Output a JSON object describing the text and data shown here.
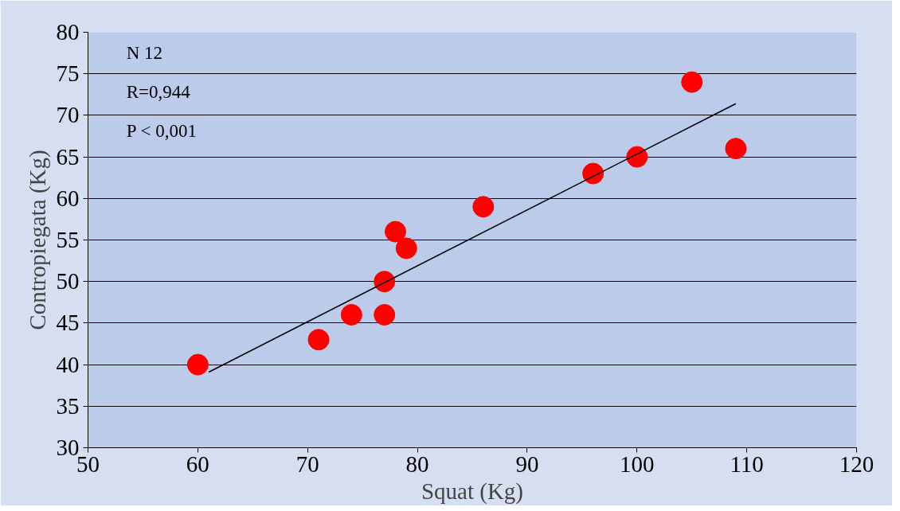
{
  "chart_data": {
    "type": "scatter",
    "xlabel": "Squat (Kg)",
    "ylabel": "Contropiegata (Kg)",
    "xlim": [
      50,
      120
    ],
    "xticks": [
      50,
      60,
      70,
      80,
      90,
      100,
      110,
      120
    ],
    "ylim": [
      30,
      80
    ],
    "yticks": [
      30,
      35,
      40,
      45,
      50,
      55,
      60,
      65,
      70,
      75,
      80
    ],
    "grid": "y",
    "marker": "circle",
    "annotations": [
      "N 12",
      "R=0,944",
      "P < 0,001"
    ],
    "series": [
      {
        "color": "#ff0000",
        "x": [
          60,
          71,
          74,
          77,
          77,
          78,
          79,
          86,
          96,
          100,
          105,
          109
        ],
        "values": [
          40,
          43,
          46,
          46,
          50,
          56,
          54,
          59,
          63,
          65,
          74,
          66
        ]
      },
      {
        "type": "line",
        "marker": "none",
        "color": "#000000",
        "x": [
          61,
          109
        ],
        "values": [
          39.1,
          71.4
        ]
      }
    ]
  }
}
